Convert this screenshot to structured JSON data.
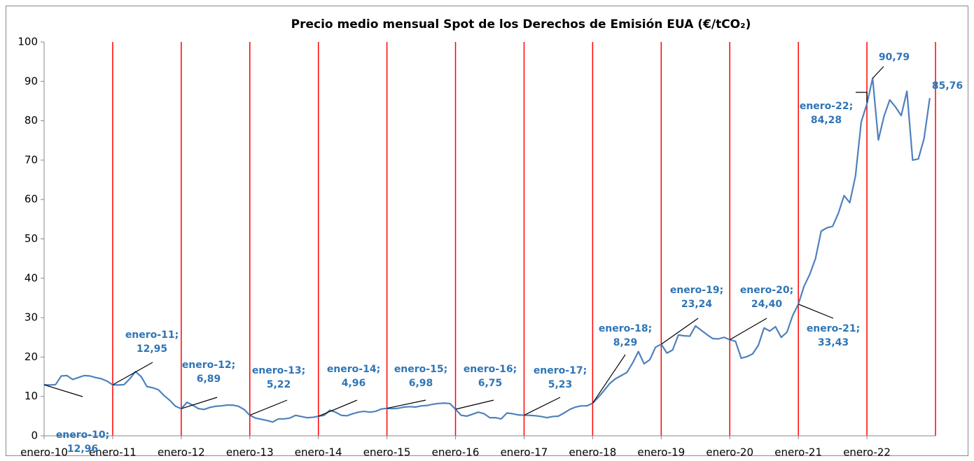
{
  "chart_data": {
    "type": "line",
    "title": "Precio medio mensual Spot de los Derechos de Emisión EUA (€/tCO₂)",
    "categories": [
      "enero-10",
      null,
      null,
      null,
      null,
      null,
      null,
      null,
      null,
      null,
      null,
      null,
      "enero-11",
      null,
      null,
      null,
      null,
      null,
      null,
      null,
      null,
      null,
      null,
      null,
      "enero-12",
      null,
      null,
      null,
      null,
      null,
      null,
      null,
      null,
      null,
      null,
      null,
      "enero-13",
      null,
      null,
      null,
      null,
      null,
      null,
      null,
      null,
      null,
      null,
      null,
      "enero-14",
      null,
      null,
      null,
      null,
      null,
      null,
      null,
      null,
      null,
      null,
      null,
      "enero-15",
      null,
      null,
      null,
      null,
      null,
      null,
      null,
      null,
      null,
      null,
      null,
      "enero-16",
      null,
      null,
      null,
      null,
      null,
      null,
      null,
      null,
      null,
      null,
      null,
      "enero-17",
      null,
      null,
      null,
      null,
      null,
      null,
      null,
      null,
      null,
      null,
      null,
      "enero-18",
      null,
      null,
      null,
      null,
      null,
      null,
      null,
      null,
      null,
      null,
      null,
      "enero-19",
      null,
      null,
      null,
      null,
      null,
      null,
      null,
      null,
      null,
      null,
      null,
      "enero-20",
      null,
      null,
      null,
      null,
      null,
      null,
      null,
      null,
      null,
      null,
      null,
      "enero-21",
      null,
      null,
      null,
      null,
      null,
      null,
      null,
      null,
      null,
      null,
      null,
      "enero-22",
      null,
      null,
      null,
      null,
      null,
      null,
      null,
      null,
      null,
      null,
      null
    ],
    "series": [
      {
        "color": "#4f81bd",
        "values": [
          12.96,
          12.9,
          13.0,
          15.2,
          15.3,
          14.3,
          14.8,
          15.3,
          15.2,
          14.8,
          14.5,
          13.9,
          12.95,
          12.9,
          13.0,
          14.5,
          16.3,
          15.0,
          12.5,
          12.2,
          11.7,
          10.2,
          9.0,
          7.5,
          6.89,
          8.5,
          7.8,
          6.9,
          6.7,
          7.2,
          7.5,
          7.6,
          7.8,
          7.8,
          7.5,
          6.7,
          5.22,
          4.5,
          4.2,
          3.9,
          3.5,
          4.3,
          4.3,
          4.5,
          5.2,
          4.9,
          4.6,
          4.7,
          4.96,
          5.2,
          6.5,
          6.0,
          5.2,
          5.1,
          5.6,
          6.0,
          6.2,
          6.0,
          6.2,
          6.8,
          6.98,
          6.9,
          7.0,
          7.3,
          7.4,
          7.3,
          7.6,
          7.7,
          8.0,
          8.2,
          8.3,
          8.2,
          6.75,
          5.2,
          5.0,
          5.5,
          6.0,
          5.6,
          4.6,
          4.6,
          4.3,
          5.8,
          5.6,
          5.3,
          5.23,
          5.2,
          5.1,
          4.9,
          4.6,
          4.9,
          5.0,
          5.8,
          6.7,
          7.3,
          7.6,
          7.6,
          8.29,
          9.8,
          11.5,
          13.3,
          14.5,
          15.3,
          16.1,
          18.5,
          21.4,
          18.3,
          19.3,
          22.5,
          23.24,
          21.0,
          21.8,
          25.6,
          25.4,
          25.3,
          27.9,
          26.8,
          25.7,
          24.7,
          24.6,
          25.0,
          24.4,
          24.0,
          19.7,
          20.1,
          20.8,
          23.0,
          27.4,
          26.6,
          27.7,
          25.0,
          26.3,
          30.5,
          33.43,
          38.0,
          41.0,
          45.0,
          52.0,
          52.8,
          53.2,
          56.5,
          61.0,
          59.2,
          66.0,
          79.7,
          84.28,
          90.79,
          75.1,
          81.2,
          85.3,
          83.5,
          81.3,
          87.5,
          70.0,
          70.3,
          75.5,
          85.76
        ],
        "value_labels": [
          [
            "enero-10;",
            "12,96"
          ],
          null,
          null,
          null,
          null,
          null,
          null,
          null,
          null,
          null,
          null,
          null,
          [
            "enero-11;",
            "12,95"
          ],
          null,
          null,
          null,
          null,
          null,
          null,
          null,
          null,
          null,
          null,
          null,
          [
            "enero-12;",
            "6,89"
          ],
          null,
          null,
          null,
          null,
          null,
          null,
          null,
          null,
          null,
          null,
          null,
          [
            "enero-13;",
            "5,22"
          ],
          null,
          null,
          null,
          null,
          null,
          null,
          null,
          null,
          null,
          null,
          null,
          [
            "enero-14;",
            "4,96"
          ],
          null,
          null,
          null,
          null,
          null,
          null,
          null,
          null,
          null,
          null,
          null,
          [
            "enero-15;",
            "6,98"
          ],
          null,
          null,
          null,
          null,
          null,
          null,
          null,
          null,
          null,
          null,
          null,
          [
            "enero-16;",
            "6,75"
          ],
          null,
          null,
          null,
          null,
          null,
          null,
          null,
          null,
          null,
          null,
          null,
          [
            "enero-17;",
            "5,23"
          ],
          null,
          null,
          null,
          null,
          null,
          null,
          null,
          null,
          null,
          null,
          null,
          [
            "enero-18;",
            "8,29"
          ],
          null,
          null,
          null,
          null,
          null,
          null,
          null,
          null,
          null,
          null,
          null,
          [
            "enero-19;",
            "23,24"
          ],
          null,
          null,
          null,
          null,
          null,
          null,
          null,
          null,
          null,
          null,
          null,
          [
            "enero-20;",
            "24,40"
          ],
          null,
          null,
          null,
          null,
          null,
          null,
          null,
          null,
          null,
          null,
          null,
          [
            "enero-21;",
            "33,43"
          ],
          null,
          null,
          null,
          null,
          null,
          null,
          null,
          null,
          null,
          null,
          null,
          [
            "enero-22;",
            "84,28"
          ],
          [
            "90,79"
          ],
          null,
          null,
          null,
          null,
          null,
          null,
          null,
          null,
          null,
          [
            "85,76"
          ]
        ]
      }
    ],
    "ylim": [
      0,
      100
    ],
    "yticks": [
      0,
      10,
      20,
      30,
      40,
      50,
      60,
      70,
      80,
      90,
      100
    ],
    "grid_color": "#ff0000"
  }
}
